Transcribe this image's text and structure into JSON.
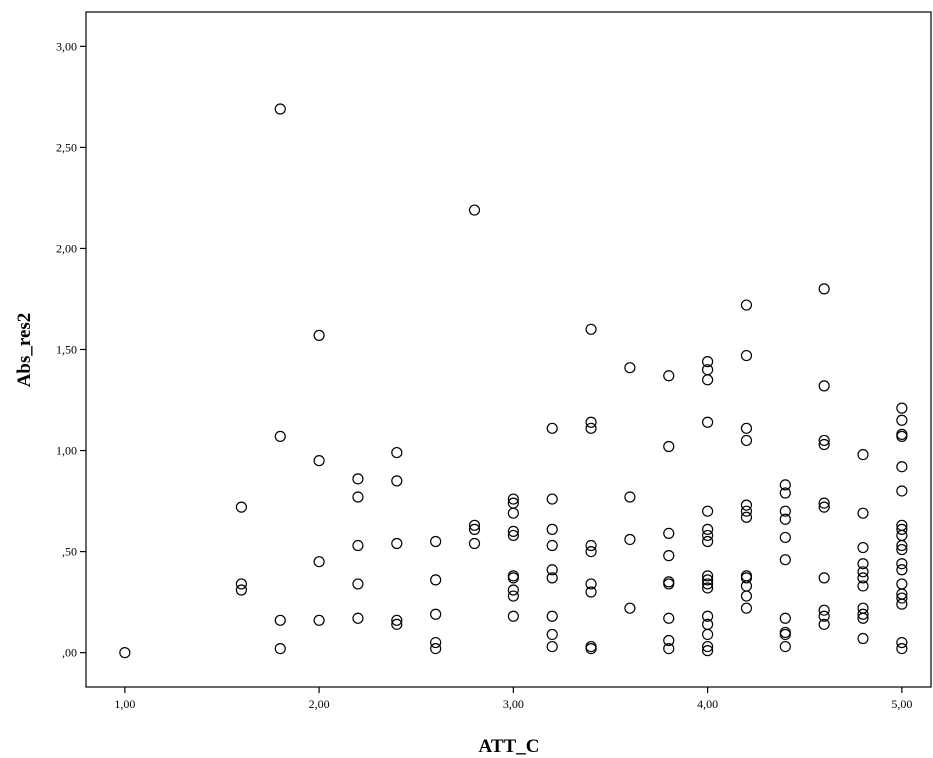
{
  "chart_data": {
    "type": "scatter",
    "title": "",
    "xlabel": "ATT_C",
    "ylabel": "Abs_res2",
    "xlim": [
      0.8,
      5.15
    ],
    "ylim": [
      -0.17,
      3.17
    ],
    "xticks": [
      1.0,
      2.0,
      3.0,
      4.0,
      5.0
    ],
    "xtick_labels": [
      "1,00",
      "2,00",
      "3,00",
      "4,00",
      "5,00"
    ],
    "yticks": [
      0.0,
      0.5,
      1.0,
      1.5,
      2.0,
      2.5,
      3.0
    ],
    "ytick_labels": [
      ",00",
      ",50",
      "1,00",
      "1,50",
      "2,00",
      "2,50",
      "3,00"
    ],
    "grid": false,
    "legend": "none",
    "marker": "open-circle",
    "points": [
      [
        1.0,
        0.0
      ],
      [
        1.6,
        0.72
      ],
      [
        1.6,
        0.34
      ],
      [
        1.6,
        0.31
      ],
      [
        1.8,
        2.69
      ],
      [
        1.8,
        1.07
      ],
      [
        1.8,
        0.16
      ],
      [
        1.8,
        0.02
      ],
      [
        2.0,
        1.57
      ],
      [
        2.0,
        0.95
      ],
      [
        2.0,
        0.45
      ],
      [
        2.0,
        0.16
      ],
      [
        2.2,
        0.86
      ],
      [
        2.2,
        0.77
      ],
      [
        2.2,
        0.53
      ],
      [
        2.2,
        0.34
      ],
      [
        2.2,
        0.17
      ],
      [
        2.4,
        0.99
      ],
      [
        2.4,
        0.85
      ],
      [
        2.4,
        0.54
      ],
      [
        2.4,
        0.16
      ],
      [
        2.4,
        0.14
      ],
      [
        2.6,
        0.55
      ],
      [
        2.6,
        0.36
      ],
      [
        2.6,
        0.19
      ],
      [
        2.6,
        0.05
      ],
      [
        2.6,
        0.02
      ],
      [
        2.8,
        2.19
      ],
      [
        2.8,
        0.63
      ],
      [
        2.8,
        0.61
      ],
      [
        2.8,
        0.54
      ],
      [
        3.0,
        0.76
      ],
      [
        3.0,
        0.74
      ],
      [
        3.0,
        0.69
      ],
      [
        3.0,
        0.6
      ],
      [
        3.0,
        0.58
      ],
      [
        3.0,
        0.38
      ],
      [
        3.0,
        0.37
      ],
      [
        3.0,
        0.31
      ],
      [
        3.0,
        0.28
      ],
      [
        3.0,
        0.18
      ],
      [
        3.2,
        1.11
      ],
      [
        3.2,
        0.76
      ],
      [
        3.2,
        0.61
      ],
      [
        3.2,
        0.53
      ],
      [
        3.2,
        0.41
      ],
      [
        3.2,
        0.37
      ],
      [
        3.2,
        0.18
      ],
      [
        3.2,
        0.09
      ],
      [
        3.2,
        0.03
      ],
      [
        3.4,
        1.6
      ],
      [
        3.4,
        1.14
      ],
      [
        3.4,
        1.11
      ],
      [
        3.4,
        0.53
      ],
      [
        3.4,
        0.5
      ],
      [
        3.4,
        0.34
      ],
      [
        3.4,
        0.3
      ],
      [
        3.4,
        0.03
      ],
      [
        3.4,
        0.02
      ],
      [
        3.6,
        1.41
      ],
      [
        3.6,
        0.77
      ],
      [
        3.6,
        0.56
      ],
      [
        3.6,
        0.22
      ],
      [
        3.8,
        1.37
      ],
      [
        3.8,
        1.02
      ],
      [
        3.8,
        0.59
      ],
      [
        3.8,
        0.48
      ],
      [
        3.8,
        0.35
      ],
      [
        3.8,
        0.34
      ],
      [
        3.8,
        0.17
      ],
      [
        3.8,
        0.06
      ],
      [
        3.8,
        0.02
      ],
      [
        4.0,
        1.44
      ],
      [
        4.0,
        1.4
      ],
      [
        4.0,
        1.35
      ],
      [
        4.0,
        1.14
      ],
      [
        4.0,
        0.7
      ],
      [
        4.0,
        0.61
      ],
      [
        4.0,
        0.58
      ],
      [
        4.0,
        0.55
      ],
      [
        4.0,
        0.38
      ],
      [
        4.0,
        0.36
      ],
      [
        4.0,
        0.34
      ],
      [
        4.0,
        0.32
      ],
      [
        4.0,
        0.18
      ],
      [
        4.0,
        0.14
      ],
      [
        4.0,
        0.09
      ],
      [
        4.0,
        0.03
      ],
      [
        4.0,
        0.01
      ],
      [
        4.2,
        1.72
      ],
      [
        4.2,
        1.47
      ],
      [
        4.2,
        1.11
      ],
      [
        4.2,
        1.05
      ],
      [
        4.2,
        0.73
      ],
      [
        4.2,
        0.7
      ],
      [
        4.2,
        0.67
      ],
      [
        4.2,
        0.38
      ],
      [
        4.2,
        0.37
      ],
      [
        4.2,
        0.33
      ],
      [
        4.2,
        0.28
      ],
      [
        4.2,
        0.22
      ],
      [
        4.4,
        0.83
      ],
      [
        4.4,
        0.79
      ],
      [
        4.4,
        0.7
      ],
      [
        4.4,
        0.66
      ],
      [
        4.4,
        0.57
      ],
      [
        4.4,
        0.46
      ],
      [
        4.4,
        0.17
      ],
      [
        4.4,
        0.1
      ],
      [
        4.4,
        0.09
      ],
      [
        4.4,
        0.03
      ],
      [
        4.6,
        1.8
      ],
      [
        4.6,
        1.32
      ],
      [
        4.6,
        1.05
      ],
      [
        4.6,
        1.03
      ],
      [
        4.6,
        0.74
      ],
      [
        4.6,
        0.72
      ],
      [
        4.6,
        0.37
      ],
      [
        4.6,
        0.21
      ],
      [
        4.6,
        0.18
      ],
      [
        4.6,
        0.14
      ],
      [
        4.8,
        0.98
      ],
      [
        4.8,
        0.69
      ],
      [
        4.8,
        0.52
      ],
      [
        4.8,
        0.44
      ],
      [
        4.8,
        0.4
      ],
      [
        4.8,
        0.37
      ],
      [
        4.8,
        0.33
      ],
      [
        4.8,
        0.22
      ],
      [
        4.8,
        0.19
      ],
      [
        4.8,
        0.17
      ],
      [
        4.8,
        0.07
      ],
      [
        5.0,
        1.21
      ],
      [
        5.0,
        1.15
      ],
      [
        5.0,
        1.08
      ],
      [
        5.0,
        1.07
      ],
      [
        5.0,
        0.92
      ],
      [
        5.0,
        0.8
      ],
      [
        5.0,
        0.63
      ],
      [
        5.0,
        0.61
      ],
      [
        5.0,
        0.58
      ],
      [
        5.0,
        0.53
      ],
      [
        5.0,
        0.51
      ],
      [
        5.0,
        0.44
      ],
      [
        5.0,
        0.41
      ],
      [
        5.0,
        0.34
      ],
      [
        5.0,
        0.29
      ],
      [
        5.0,
        0.27
      ],
      [
        5.0,
        0.24
      ],
      [
        5.0,
        0.05
      ],
      [
        5.0,
        0.02
      ]
    ]
  }
}
